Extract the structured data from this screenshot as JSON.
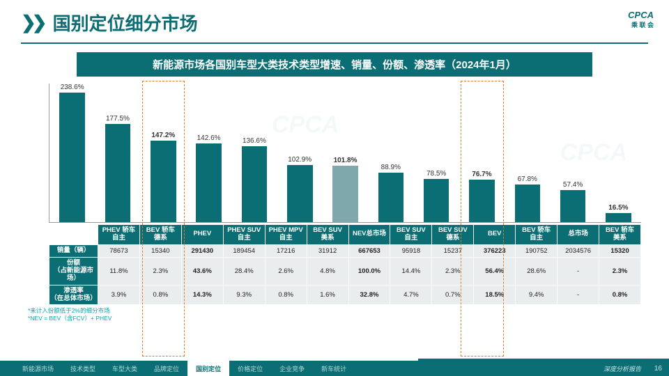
{
  "header": {
    "title": "国别定位细分市场",
    "logo_main": "CPCA",
    "logo_sub": "乘 联 会"
  },
  "subbanner": "新能源市场各国别车型大类技术类型增速、销量、份额、渗透率（2024年1月）",
  "chart": {
    "type": "bar",
    "max": 250,
    "bar_color": "#0b6e74",
    "highlight_color": "#7ea8ab",
    "highlight_indices": [
      2,
      6,
      9,
      12
    ],
    "dashed_indices": [
      2,
      9
    ],
    "items": [
      {
        "cat": "PHEV 轿车\n自主",
        "pct": "238.6%",
        "v": 238.6
      },
      {
        "cat": "BEV 轿车\n德系",
        "pct": "177.5%",
        "v": 177.5
      },
      {
        "cat": "PHEV",
        "pct": "147.2%",
        "v": 147.2
      },
      {
        "cat": "PHEV SUV\n自主",
        "pct": "142.6%",
        "v": 142.6
      },
      {
        "cat": "PHEV MPV\n自主",
        "pct": "136.6%",
        "v": 136.6
      },
      {
        "cat": "BEV SUV\n美系",
        "pct": "102.9%",
        "v": 102.9
      },
      {
        "cat": "NEV总市场",
        "pct": "101.8%",
        "v": 101.8
      },
      {
        "cat": "BEV SUV\n自主",
        "pct": "88.9%",
        "v": 88.9
      },
      {
        "cat": "BEV SUV\n德系",
        "pct": "78.5%",
        "v": 78.5
      },
      {
        "cat": "BEV",
        "pct": "76.7%",
        "v": 76.7
      },
      {
        "cat": "BEV 轿车\n自主",
        "pct": "67.8%",
        "v": 67.8
      },
      {
        "cat": "总市场",
        "pct": "57.4%",
        "v": 57.4
      },
      {
        "cat": "BEV 轿车\n美系",
        "pct": "16.5%",
        "v": 16.5
      }
    ]
  },
  "table": {
    "row_labels": [
      "销量（辆）",
      "份额\n（占新能源市场）",
      "渗透率\n（在总体市场）"
    ],
    "rows": [
      [
        "78673",
        "15340",
        "291430",
        "189454",
        "17216",
        "31912",
        "667653",
        "95918",
        "15237",
        "376223",
        "190752",
        "2034576",
        "15320"
      ],
      [
        "11.8%",
        "2.3%",
        "43.6%",
        "28.4%",
        "2.6%",
        "4.8%",
        "100.0%",
        "14.4%",
        "2.3%",
        "56.4%",
        "28.6%",
        "-",
        "2.3%"
      ],
      [
        "3.9%",
        "0.8%",
        "14.3%",
        "9.3%",
        "0.8%",
        "1.6%",
        "32.8%",
        "4.7%",
        "0.7%",
        "18.5%",
        "9.4%",
        "-",
        "0.8%"
      ]
    ]
  },
  "notes": {
    "l1": "*未计入份额低于2%的细分市场",
    "l2": "*NEV = BEV（含FCV）+ PHEV"
  },
  "footer": {
    "tabs": [
      "新能源市场",
      "技术类型",
      "车型大类",
      "品牌定位",
      "国别定位",
      "价格定位",
      "企业竞争",
      "新车统计"
    ],
    "active": 4,
    "right_text": "深度分析报告",
    "page": "16"
  }
}
